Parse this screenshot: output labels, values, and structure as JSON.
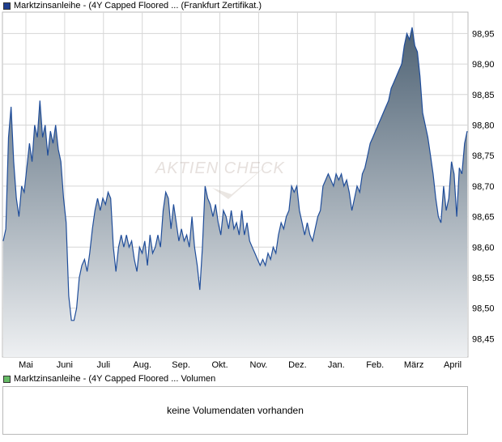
{
  "legend_price": {
    "label": "Marktzinsanleihe - (4Y Capped Floored ... (Frankfurt Zertifikat.)",
    "color": "#1f3f8f"
  },
  "legend_volume": {
    "label": "Marktzinsanleihe - (4Y Capped Floored ... Volumen",
    "color": "#66bb66"
  },
  "watermark": "AKTIEN CHECK",
  "volume_message": "keine Volumendaten vorhanden",
  "chart_data": {
    "type": "area",
    "x_labels": [
      "Mai",
      "Juni",
      "Juli",
      "Aug.",
      "Sep.",
      "Okt.",
      "Nov.",
      "Dez.",
      "Jan.",
      "Feb.",
      "März",
      "April"
    ],
    "y_ticks": [
      "98,45",
      "98,50",
      "98,55",
      "98,60",
      "98,65",
      "98,70",
      "98,75",
      "98,80",
      "98,85",
      "98,90",
      "98,95"
    ],
    "ylim": [
      98.42,
      98.985
    ],
    "grid": true,
    "line_color": "#1f4d9a",
    "fill_top_color": "#4e6274",
    "fill_bottom_color": "#eef0f2",
    "series": [
      {
        "values": [
          [
            0,
            98.61
          ],
          [
            1,
            98.63
          ],
          [
            2,
            98.78
          ],
          [
            3,
            98.83
          ],
          [
            4,
            98.74
          ],
          [
            5,
            98.68
          ],
          [
            6,
            98.65
          ],
          [
            7,
            98.7
          ],
          [
            8,
            98.69
          ],
          [
            9,
            98.73
          ],
          [
            10,
            98.77
          ],
          [
            11,
            98.74
          ],
          [
            12,
            98.8
          ],
          [
            13,
            98.78
          ],
          [
            14,
            98.84
          ],
          [
            15,
            98.78
          ],
          [
            16,
            98.8
          ],
          [
            17,
            98.75
          ],
          [
            18,
            98.79
          ],
          [
            19,
            98.77
          ],
          [
            20,
            98.8
          ],
          [
            21,
            98.76
          ],
          [
            22,
            98.74
          ],
          [
            23,
            98.68
          ],
          [
            24,
            98.64
          ],
          [
            25,
            98.52
          ],
          [
            26,
            98.48
          ],
          [
            27,
            98.48
          ],
          [
            28,
            98.5
          ],
          [
            29,
            98.55
          ],
          [
            30,
            98.57
          ],
          [
            31,
            98.58
          ],
          [
            32,
            98.56
          ],
          [
            33,
            98.59
          ],
          [
            34,
            98.63
          ],
          [
            35,
            98.66
          ],
          [
            36,
            98.68
          ],
          [
            37,
            98.66
          ],
          [
            38,
            98.68
          ],
          [
            39,
            98.67
          ],
          [
            40,
            98.69
          ],
          [
            41,
            98.68
          ],
          [
            42,
            98.6
          ],
          [
            43,
            98.56
          ],
          [
            44,
            98.6
          ],
          [
            45,
            98.62
          ],
          [
            46,
            98.6
          ],
          [
            47,
            98.62
          ],
          [
            48,
            98.6
          ],
          [
            49,
            98.61
          ],
          [
            50,
            98.58
          ],
          [
            51,
            98.56
          ],
          [
            52,
            98.6
          ],
          [
            53,
            98.59
          ],
          [
            54,
            98.61
          ],
          [
            55,
            98.57
          ],
          [
            56,
            98.62
          ],
          [
            57,
            98.59
          ],
          [
            58,
            98.6
          ],
          [
            59,
            98.62
          ],
          [
            60,
            98.6
          ],
          [
            61,
            98.66
          ],
          [
            62,
            98.69
          ],
          [
            63,
            98.68
          ],
          [
            64,
            98.63
          ],
          [
            65,
            98.67
          ],
          [
            66,
            98.64
          ],
          [
            67,
            98.61
          ],
          [
            68,
            98.63
          ],
          [
            69,
            98.61
          ],
          [
            70,
            98.62
          ],
          [
            71,
            98.6
          ],
          [
            72,
            98.65
          ],
          [
            73,
            98.6
          ],
          [
            74,
            98.57
          ],
          [
            75,
            98.53
          ],
          [
            76,
            98.6
          ],
          [
            77,
            98.7
          ],
          [
            78,
            98.68
          ],
          [
            79,
            98.67
          ],
          [
            80,
            98.65
          ],
          [
            81,
            98.67
          ],
          [
            82,
            98.64
          ],
          [
            83,
            98.62
          ],
          [
            84,
            98.66
          ],
          [
            85,
            98.65
          ],
          [
            86,
            98.63
          ],
          [
            87,
            98.66
          ],
          [
            88,
            98.63
          ],
          [
            89,
            98.64
          ],
          [
            90,
            98.62
          ],
          [
            91,
            98.66
          ],
          [
            92,
            98.62
          ],
          [
            93,
            98.64
          ],
          [
            94,
            98.61
          ],
          [
            95,
            98.6
          ],
          [
            96,
            98.59
          ],
          [
            97,
            98.58
          ],
          [
            98,
            98.57
          ],
          [
            99,
            98.58
          ],
          [
            100,
            98.57
          ],
          [
            101,
            98.59
          ],
          [
            102,
            98.58
          ],
          [
            103,
            98.6
          ],
          [
            104,
            98.59
          ],
          [
            105,
            98.62
          ],
          [
            106,
            98.64
          ],
          [
            107,
            98.63
          ],
          [
            108,
            98.65
          ],
          [
            109,
            98.66
          ],
          [
            110,
            98.7
          ],
          [
            111,
            98.69
          ],
          [
            112,
            98.7
          ],
          [
            113,
            98.66
          ],
          [
            114,
            98.64
          ],
          [
            115,
            98.62
          ],
          [
            116,
            98.64
          ],
          [
            117,
            98.62
          ],
          [
            118,
            98.61
          ],
          [
            119,
            98.63
          ],
          [
            120,
            98.65
          ],
          [
            121,
            98.66
          ],
          [
            122,
            98.7
          ],
          [
            123,
            98.71
          ],
          [
            124,
            98.72
          ],
          [
            125,
            98.71
          ],
          [
            126,
            98.7
          ],
          [
            127,
            98.72
          ],
          [
            128,
            98.71
          ],
          [
            129,
            98.72
          ],
          [
            130,
            98.7
          ],
          [
            131,
            98.71
          ],
          [
            132,
            98.69
          ],
          [
            133,
            98.66
          ],
          [
            134,
            98.68
          ],
          [
            135,
            98.7
          ],
          [
            136,
            98.69
          ],
          [
            137,
            98.72
          ],
          [
            138,
            98.73
          ],
          [
            139,
            98.75
          ],
          [
            140,
            98.77
          ],
          [
            141,
            98.78
          ],
          [
            142,
            98.79
          ],
          [
            143,
            98.8
          ],
          [
            144,
            98.81
          ],
          [
            145,
            98.82
          ],
          [
            146,
            98.83
          ],
          [
            147,
            98.84
          ],
          [
            148,
            98.86
          ],
          [
            149,
            98.87
          ],
          [
            150,
            98.88
          ],
          [
            151,
            98.89
          ],
          [
            152,
            98.9
          ],
          [
            153,
            98.93
          ],
          [
            154,
            98.95
          ],
          [
            155,
            98.94
          ],
          [
            156,
            98.96
          ],
          [
            157,
            98.93
          ],
          [
            158,
            98.92
          ],
          [
            159,
            98.88
          ],
          [
            160,
            98.82
          ],
          [
            161,
            98.8
          ],
          [
            162,
            98.78
          ],
          [
            163,
            98.75
          ],
          [
            164,
            98.72
          ],
          [
            165,
            98.68
          ],
          [
            166,
            98.65
          ],
          [
            167,
            98.64
          ],
          [
            168,
            98.7
          ],
          [
            169,
            98.66
          ],
          [
            170,
            98.68
          ],
          [
            171,
            98.74
          ],
          [
            172,
            98.72
          ],
          [
            173,
            98.65
          ],
          [
            174,
            98.73
          ],
          [
            175,
            98.72
          ],
          [
            176,
            98.77
          ],
          [
            177,
            98.79
          ]
        ]
      }
    ]
  }
}
